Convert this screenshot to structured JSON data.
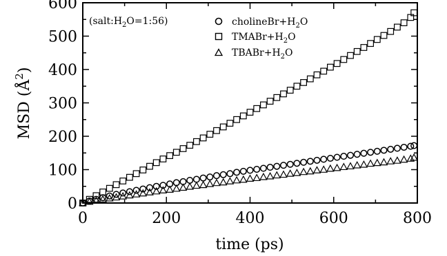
{
  "chart_data": {
    "type": "scatter",
    "xlabel": "time (ps)",
    "ylabel_main": "MSD (",
    "ylabel_unit": "Å",
    "ylabel_sup": "2",
    "ylabel_close": ")",
    "xlim": [
      0,
      800
    ],
    "ylim": [
      0,
      600
    ],
    "xticks": [
      0,
      200,
      400,
      600,
      800
    ],
    "yticks": [
      0,
      100,
      200,
      300,
      400,
      500,
      600
    ],
    "grid": false,
    "legend_placement": "top-center",
    "annotation": {
      "prefix": "(salt:H",
      "sub": "2",
      "suffix": "O=1:56)"
    },
    "x": [
      0,
      16,
      32,
      48,
      64,
      80,
      96,
      112,
      128,
      144,
      160,
      176,
      192,
      208,
      224,
      240,
      256,
      272,
      288,
      304,
      320,
      336,
      352,
      368,
      384,
      400,
      416,
      432,
      448,
      464,
      480,
      496,
      512,
      528,
      544,
      560,
      576,
      592,
      608,
      624,
      640,
      656,
      672,
      688,
      704,
      720,
      736,
      752,
      768,
      784,
      792
    ],
    "series": [
      {
        "name_main": "cholineBr+H",
        "name_sub": "2",
        "name_end": "O",
        "marker": "circle",
        "values": [
          0,
          6,
          11,
          16,
          21,
          26,
          30,
          34,
          38,
          42,
          46,
          50,
          53,
          57,
          61,
          64,
          68,
          71,
          75,
          78,
          82,
          85,
          88,
          92,
          95,
          98,
          101,
          104,
          107,
          110,
          113,
          116,
          119,
          122,
          125,
          128,
          131,
          134,
          137,
          140,
          143,
          146,
          149,
          152,
          155,
          158,
          161,
          164,
          167,
          170,
          172
        ]
      },
      {
        "name_main": "TMABr+H",
        "name_sub": "2",
        "name_end": "O",
        "marker": "square",
        "values": [
          0,
          11,
          22,
          33,
          44,
          55,
          66,
          77,
          88,
          99,
          110,
          121,
          132,
          142,
          152,
          163,
          173,
          184,
          195,
          206,
          217,
          228,
          239,
          250,
          261,
          272,
          283,
          294,
          305,
          316,
          327,
          338,
          350,
          361,
          372,
          384,
          395,
          407,
          418,
          430,
          442,
          454,
          466,
          478,
          490,
          502,
          514,
          527,
          540,
          556,
          570
        ]
      },
      {
        "name_main": "TBABr+H",
        "name_sub": "2",
        "name_end": "O",
        "marker": "triangle",
        "values": [
          0,
          4,
          7,
          11,
          14,
          17,
          20,
          23,
          26,
          29,
          32,
          35,
          38,
          40,
          43,
          46,
          49,
          52,
          54,
          57,
          60,
          62,
          65,
          68,
          70,
          73,
          75,
          78,
          80,
          83,
          85,
          88,
          90,
          93,
          95,
          98,
          100,
          103,
          105,
          108,
          110,
          113,
          115,
          118,
          120,
          122,
          125,
          127,
          130,
          133,
          136
        ]
      }
    ]
  }
}
